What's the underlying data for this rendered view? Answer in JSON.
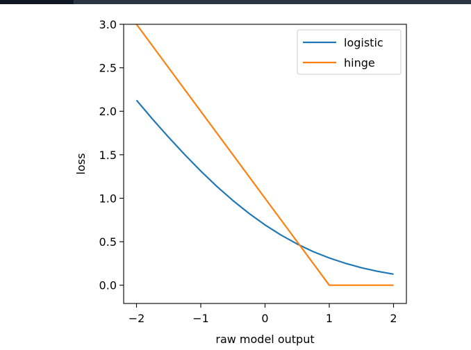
{
  "chart_data": {
    "type": "line",
    "title": "",
    "xlabel": "raw model output",
    "ylabel": "loss",
    "xlim": [
      -2.2,
      2.2
    ],
    "ylim": [
      -0.21,
      3.0
    ],
    "xticks": [
      -2,
      -1,
      0,
      1,
      2
    ],
    "xtick_labels": [
      "−2",
      "−1",
      "0",
      "1",
      "2"
    ],
    "yticks": [
      0.0,
      0.5,
      1.0,
      1.5,
      2.0,
      2.5,
      3.0
    ],
    "ytick_labels": [
      "0.0",
      "0.5",
      "1.0",
      "1.5",
      "2.0",
      "2.5",
      "3.0"
    ],
    "grid": false,
    "legend_position": "top-right",
    "series": [
      {
        "name": "logistic",
        "color": "#1f77b4",
        "x": [
          -2.0,
          -1.75,
          -1.5,
          -1.25,
          -1.0,
          -0.75,
          -0.5,
          -0.25,
          0.0,
          0.25,
          0.5,
          0.75,
          1.0,
          1.25,
          1.5,
          1.75,
          2.0
        ],
        "y": [
          2.127,
          1.909,
          1.701,
          1.502,
          1.313,
          1.136,
          0.974,
          0.826,
          0.693,
          0.576,
          0.474,
          0.386,
          0.313,
          0.252,
          0.201,
          0.16,
          0.127
        ]
      },
      {
        "name": "hinge",
        "color": "#ff7f0e",
        "x": [
          -2.0,
          1.0,
          2.0
        ],
        "y": [
          3.0,
          0.0,
          0.0
        ]
      }
    ]
  }
}
